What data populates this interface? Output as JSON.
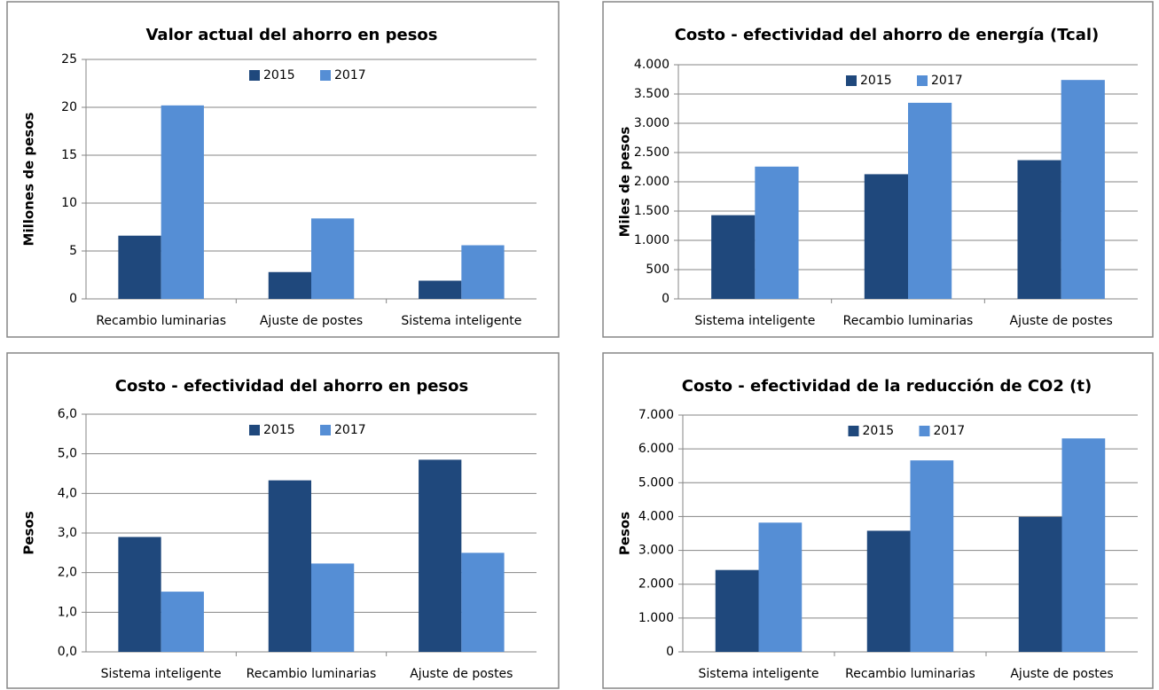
{
  "chart_data": [
    {
      "type": "bar",
      "title": "Valor actual del ahorro en pesos",
      "y_label": "Millones de pesos",
      "categories": [
        "Recambio luminarias",
        "Ajuste de postes",
        "Sistema inteligente"
      ],
      "series": [
        {
          "name": "2015",
          "color": "#1f487c",
          "values": [
            6.6,
            2.8,
            1.9
          ]
        },
        {
          "name": "2017",
          "color": "#558ed5",
          "values": [
            20.2,
            8.4,
            5.6
          ]
        }
      ],
      "ylim": [
        0,
        25
      ],
      "yticks": [
        0,
        5,
        10,
        15,
        20,
        25
      ],
      "grid": true
    },
    {
      "type": "bar",
      "title": "Costo - efectividad del ahorro de energía (Tcal)",
      "y_label": "Miles de pesos",
      "categories": [
        "Sistema inteligente",
        "Recambio luminarias",
        "Ajuste de postes"
      ],
      "series": [
        {
          "name": "2015",
          "color": "#1f487c",
          "values": [
            1430,
            2130,
            2370
          ]
        },
        {
          "name": "2017",
          "color": "#558ed5",
          "values": [
            2260,
            3350,
            3740
          ]
        }
      ],
      "ylim": [
        0,
        4000
      ],
      "yticks": [
        0,
        500,
        {
          "value": 1000,
          "label": "1.000"
        },
        {
          "value": 1500,
          "label": "1.500"
        },
        {
          "value": 2000,
          "label": "2.000"
        },
        {
          "value": 2500,
          "label": "2.500"
        },
        {
          "value": 3000,
          "label": "3.000"
        },
        {
          "value": 3500,
          "label": "3.500"
        },
        {
          "value": 4000,
          "label": "4.000"
        }
      ],
      "grid": true
    },
    {
      "type": "bar",
      "title": "Costo - efectividad del ahorro en pesos",
      "y_label": "Pesos",
      "categories": [
        "Sistema inteligente",
        "Recambio luminarias",
        "Ajuste de postes"
      ],
      "series": [
        {
          "name": "2015",
          "color": "#1f487c",
          "values": [
            2.9,
            4.33,
            4.85
          ]
        },
        {
          "name": "2017",
          "color": "#558ed5",
          "values": [
            1.52,
            2.23,
            2.5
          ]
        }
      ],
      "ylim": [
        0,
        6
      ],
      "yticks": [
        {
          "value": 0,
          "label": "0,0"
        },
        {
          "value": 1,
          "label": "1,0"
        },
        {
          "value": 2,
          "label": "2,0"
        },
        {
          "value": 3,
          "label": "3,0"
        },
        {
          "value": 4,
          "label": "4,0"
        },
        {
          "value": 5,
          "label": "5,0"
        },
        {
          "value": 6,
          "label": "6,0"
        }
      ],
      "grid": true
    },
    {
      "type": "bar",
      "title": "Costo - efectividad de la reducción de CO2 (t)",
      "y_label": "Pesos",
      "categories": [
        "Sistema inteligente",
        "Recambio luminarias",
        "Ajuste de postes"
      ],
      "series": [
        {
          "name": "2015",
          "color": "#1f487c",
          "values": [
            2420,
            3580,
            3990
          ]
        },
        {
          "name": "2017",
          "color": "#558ed5",
          "values": [
            3820,
            5660,
            6310
          ]
        }
      ],
      "ylim": [
        0,
        7000
      ],
      "yticks": [
        0,
        {
          "value": 1000,
          "label": "1.000"
        },
        {
          "value": 2000,
          "label": "2.000"
        },
        {
          "value": 3000,
          "label": "3.000"
        },
        {
          "value": 4000,
          "label": "4.000"
        },
        {
          "value": 5000,
          "label": "5.000"
        },
        {
          "value": 6000,
          "label": "6.000"
        },
        {
          "value": 7000,
          "label": "7.000"
        }
      ],
      "grid": true
    }
  ]
}
